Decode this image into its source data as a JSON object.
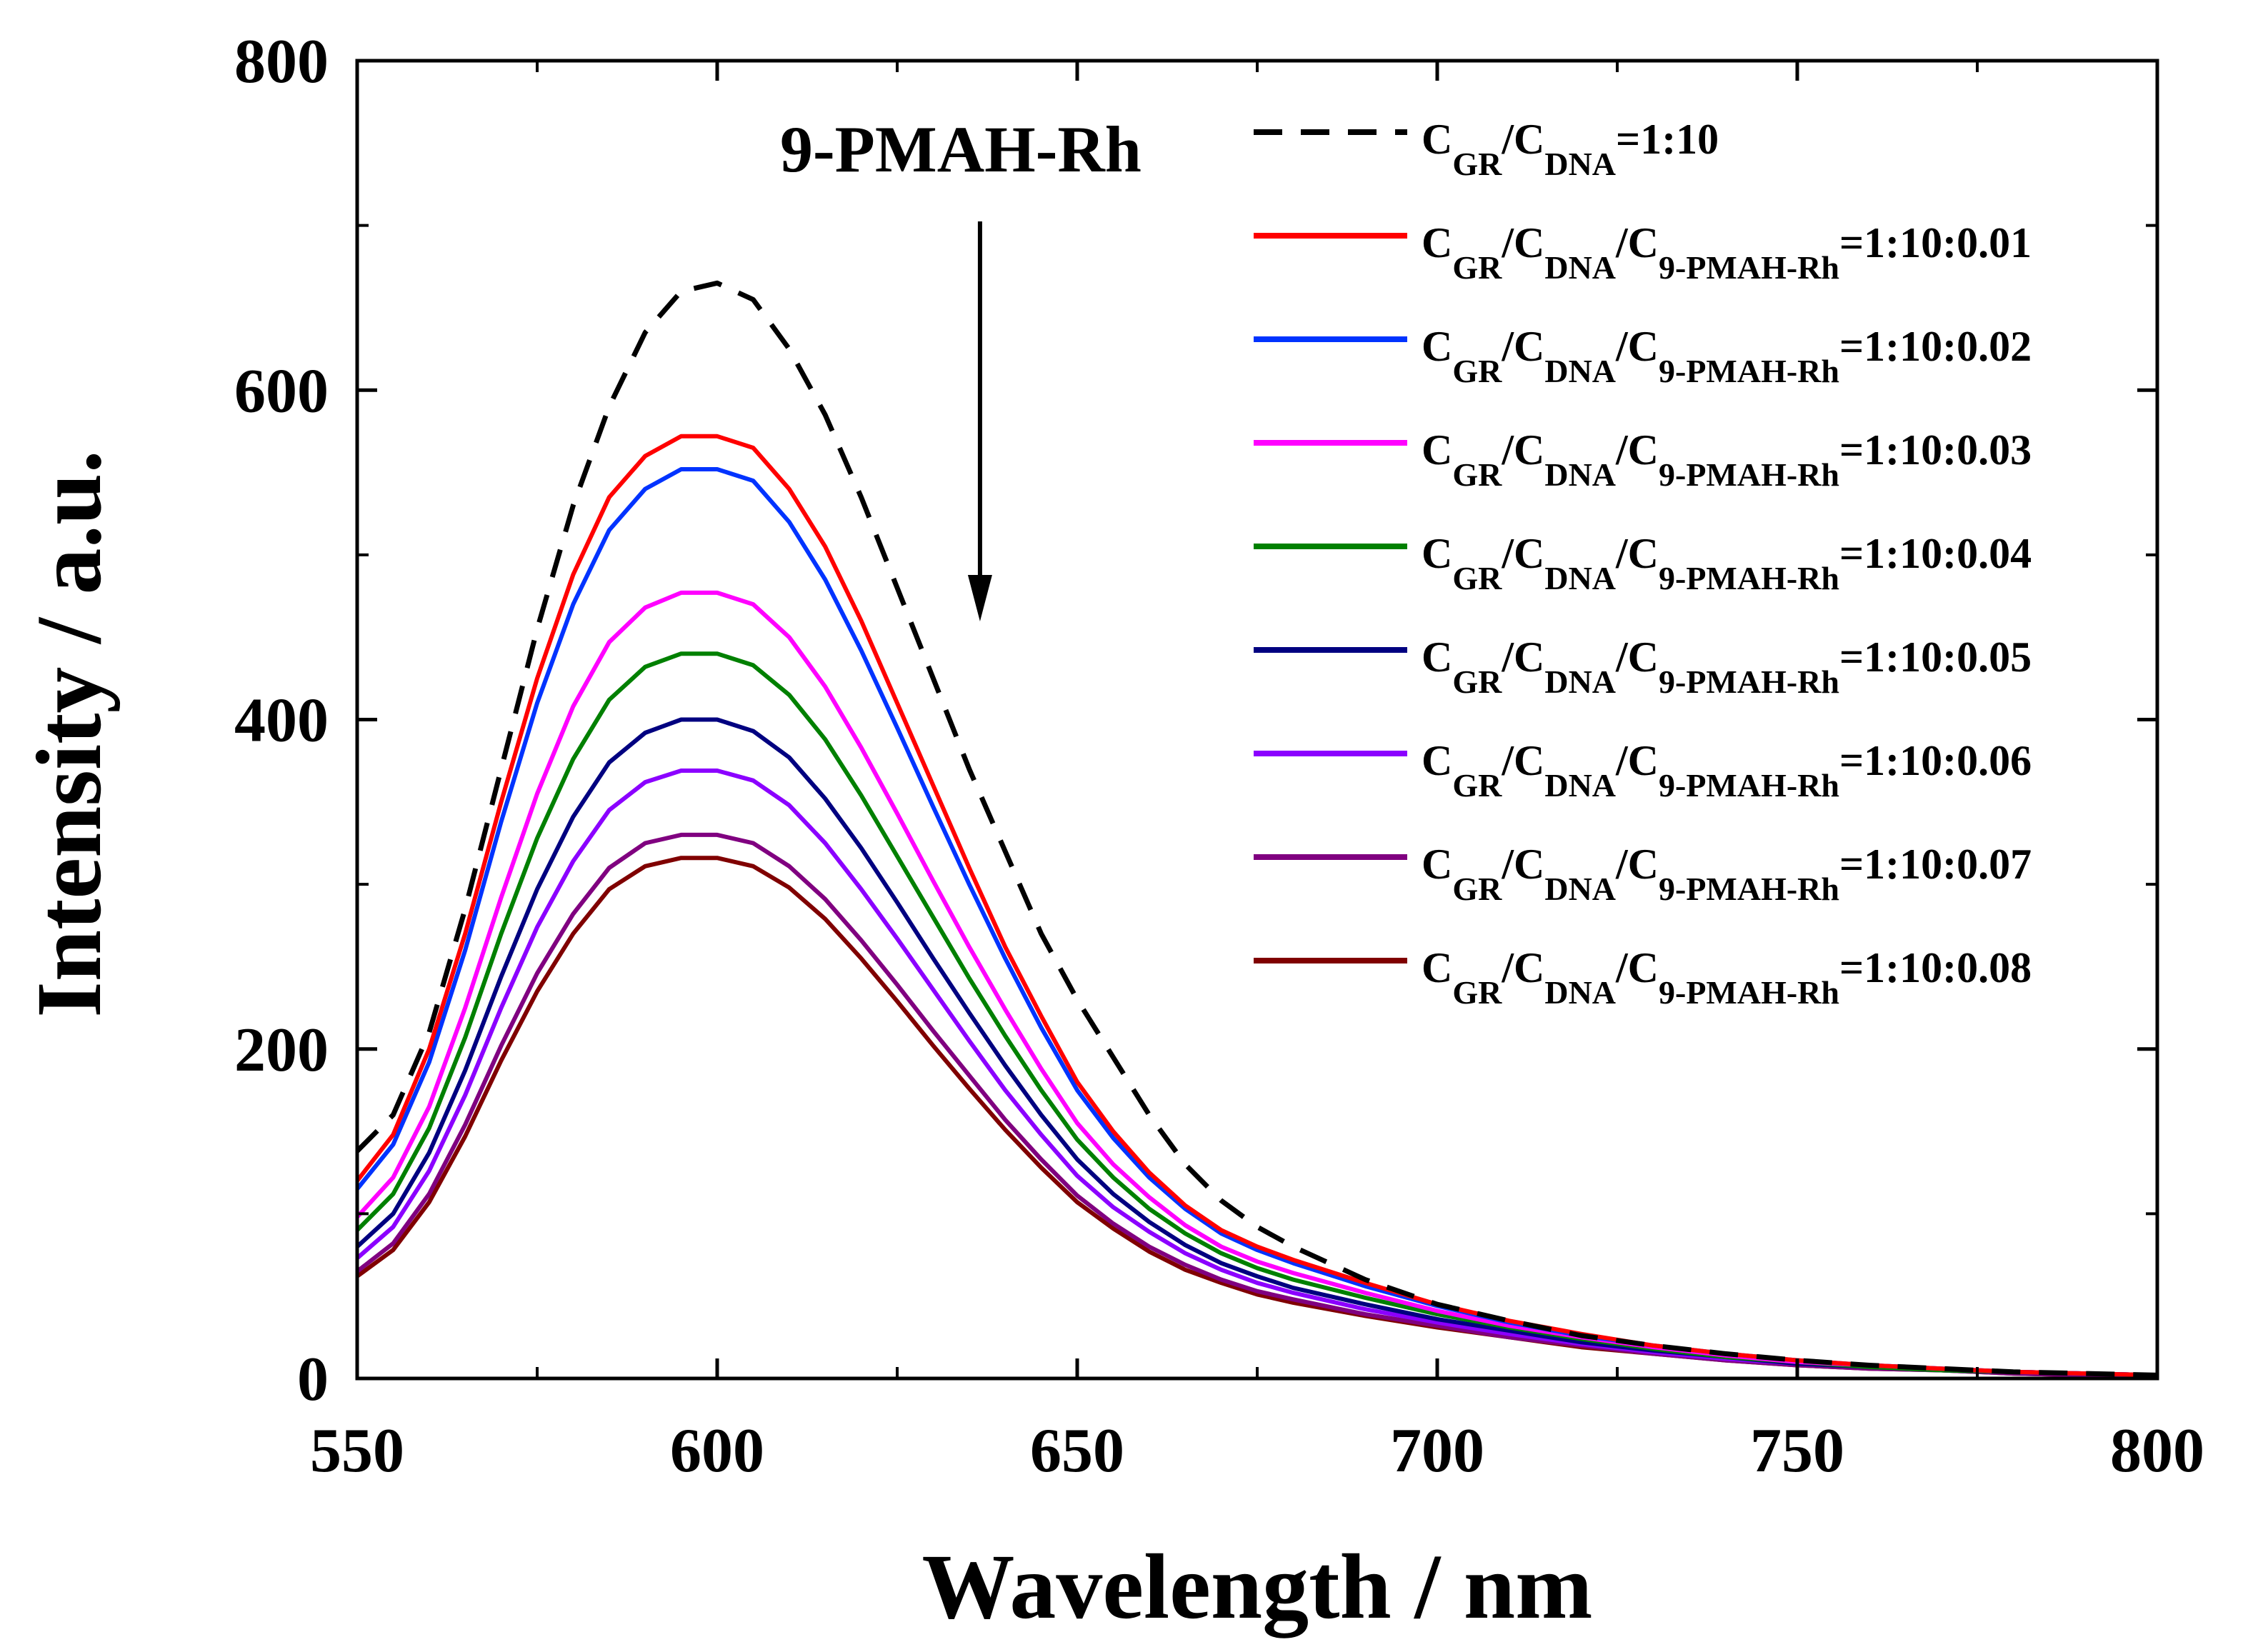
{
  "chart_data": {
    "type": "line",
    "xlabel": "Wavelength / nm",
    "ylabel": "Intensity / a.u.",
    "xlim": [
      550,
      800
    ],
    "ylim": [
      0,
      800
    ],
    "xticks": [
      550,
      600,
      650,
      700,
      750,
      800
    ],
    "yticks": [
      0,
      200,
      400,
      600,
      800
    ],
    "xtick_labels": [
      "550",
      "600",
      "650",
      "700",
      "750",
      "800"
    ],
    "ytick_labels": [
      "0",
      "200",
      "400",
      "600",
      "800"
    ],
    "annotation": "9-PMAH-Rh",
    "legend_position": "top-right",
    "x": [
      550,
      555,
      560,
      565,
      570,
      575,
      580,
      585,
      590,
      595,
      600,
      605,
      610,
      615,
      620,
      625,
      630,
      635,
      640,
      645,
      650,
      655,
      660,
      665,
      670,
      675,
      680,
      690,
      700,
      710,
      720,
      730,
      740,
      750,
      760,
      770,
      780,
      790,
      800
    ],
    "series": [
      {
        "name": "CGR/CDNA=1:10",
        "color": "#000000",
        "dash": true,
        "legend": {
          "main": [
            "C",
            "/C",
            "=1:10"
          ],
          "subs": [
            "GR",
            "DNA"
          ]
        },
        "values": [
          138,
          160,
          210,
          285,
          370,
          455,
          530,
          590,
          635,
          660,
          665,
          655,
          625,
          585,
          535,
          480,
          425,
          370,
          320,
          270,
          230,
          195,
          160,
          130,
          108,
          92,
          80,
          60,
          45,
          35,
          26,
          20,
          15,
          11,
          8,
          6,
          4,
          3,
          2
        ]
      },
      {
        "name": "CGR/CDNA/C9-PMAH-Rh=1:10:0.01",
        "color": "#ff0000",
        "dash": false,
        "legend": {
          "main": [
            "C",
            "/C",
            "/C",
            "=1:10:0.01"
          ],
          "subs": [
            "GR",
            "DNA",
            "9-PMAH-Rh"
          ]
        },
        "values": [
          120,
          148,
          200,
          270,
          350,
          425,
          488,
          535,
          560,
          572,
          572,
          565,
          540,
          505,
          460,
          410,
          360,
          310,
          262,
          220,
          180,
          150,
          125,
          105,
          90,
          80,
          72,
          58,
          45,
          35,
          27,
          20,
          15,
          11,
          8,
          6,
          4,
          3,
          2
        ]
      },
      {
        "name": "CGR/CDNA/C9-PMAH-Rh=1:10:0.02",
        "color": "#0033ff",
        "dash": false,
        "legend": {
          "main": [
            "C",
            "/C",
            "/C",
            "=1:10:0.02"
          ],
          "subs": [
            "GR",
            "DNA",
            "9-PMAH-Rh"
          ]
        },
        "values": [
          115,
          142,
          192,
          260,
          338,
          410,
          470,
          515,
          540,
          552,
          552,
          545,
          520,
          485,
          442,
          395,
          347,
          300,
          255,
          213,
          175,
          146,
          122,
          103,
          88,
          78,
          70,
          56,
          44,
          34,
          26,
          20,
          15,
          11,
          8,
          6,
          4,
          3,
          2
        ]
      },
      {
        "name": "CGR/CDNA/C9-PMAH-Rh=1:10:0.03",
        "color": "#ff00ff",
        "dash": false,
        "legend": {
          "main": [
            "C",
            "/C",
            "/C",
            "=1:10:0.03"
          ],
          "subs": [
            "GR",
            "DNA",
            "9-PMAH-Rh"
          ]
        },
        "values": [
          98,
          122,
          165,
          225,
          292,
          355,
          408,
          447,
          468,
          477,
          477,
          470,
          450,
          420,
          383,
          343,
          302,
          262,
          224,
          188,
          155,
          130,
          110,
          93,
          80,
          71,
          64,
          52,
          41,
          32,
          25,
          19,
          14,
          10,
          8,
          6,
          4,
          3,
          2
        ]
      },
      {
        "name": "CGR/CDNA/C9-PMAH-Rh=1:10:0.04",
        "color": "#008000",
        "dash": false,
        "legend": {
          "main": [
            "C",
            "/C",
            "/C",
            "=1:10:0.04"
          ],
          "subs": [
            "GR",
            "DNA",
            "9-PMAH-Rh"
          ]
        },
        "values": [
          90,
          112,
          152,
          207,
          270,
          328,
          376,
          412,
          432,
          440,
          440,
          433,
          415,
          388,
          354,
          317,
          280,
          243,
          208,
          175,
          145,
          122,
          103,
          88,
          76,
          67,
          60,
          49,
          39,
          31,
          24,
          18,
          13,
          10,
          7,
          5,
          4,
          3,
          2
        ]
      },
      {
        "name": "CGR/CDNA/C9-PMAH-Rh=1:10:0.05",
        "color": "#000080",
        "dash": false,
        "legend": {
          "main": [
            "C",
            "/C",
            "/C",
            "=1:10:0.05"
          ],
          "subs": [
            "GR",
            "DNA",
            "9-PMAH-Rh"
          ]
        },
        "values": [
          80,
          100,
          137,
          187,
          244,
          297,
          341,
          374,
          392,
          400,
          400,
          393,
          377,
          352,
          322,
          289,
          255,
          222,
          190,
          160,
          133,
          112,
          95,
          81,
          70,
          62,
          55,
          45,
          36,
          29,
          22,
          17,
          13,
          9,
          7,
          5,
          4,
          3,
          2
        ]
      },
      {
        "name": "CGR/CDNA/C9-PMAH-Rh=1:10:0.06",
        "color": "#8b00ff",
        "dash": false,
        "legend": {
          "main": [
            "C",
            "/C",
            "/C",
            "=1:10:0.06"
          ],
          "subs": [
            "GR",
            "DNA",
            "9-PMAH-Rh"
          ]
        },
        "values": [
          73,
          92,
          126,
          172,
          225,
          274,
          314,
          345,
          362,
          369,
          369,
          363,
          348,
          325,
          297,
          267,
          236,
          205,
          175,
          148,
          123,
          104,
          89,
          76,
          66,
          58,
          52,
          42,
          34,
          27,
          21,
          16,
          12,
          9,
          7,
          5,
          4,
          3,
          2
        ]
      },
      {
        "name": "CGR/CDNA/C9-PMAH-Rh=1:10:0.07",
        "color": "#800080",
        "dash": false,
        "legend": {
          "main": [
            "C",
            "/C",
            "/C",
            "=1:10:0.07"
          ],
          "subs": [
            "GR",
            "DNA",
            "9-PMAH-Rh"
          ]
        },
        "values": [
          65,
          82,
          112,
          154,
          202,
          246,
          282,
          310,
          325,
          330,
          330,
          325,
          311,
          291,
          266,
          239,
          211,
          184,
          157,
          133,
          111,
          94,
          80,
          69,
          60,
          53,
          48,
          39,
          32,
          25,
          20,
          15,
          11,
          8,
          6,
          5,
          3,
          2,
          2
        ]
      },
      {
        "name": "CGR/CDNA/C9-PMAH-Rh=1:10:0.08",
        "color": "#800000",
        "dash": false,
        "legend": {
          "main": [
            "C",
            "/C",
            "/C",
            "=1:10:0.08"
          ],
          "subs": [
            "GR",
            "DNA",
            "9-PMAH-Rh"
          ]
        },
        "values": [
          62,
          78,
          107,
          147,
          193,
          235,
          270,
          297,
          311,
          316,
          316,
          311,
          298,
          279,
          255,
          229,
          202,
          176,
          151,
          128,
          107,
          91,
          77,
          66,
          58,
          51,
          46,
          38,
          31,
          25,
          19,
          15,
          11,
          8,
          6,
          5,
          3,
          2,
          2
        ]
      }
    ]
  }
}
